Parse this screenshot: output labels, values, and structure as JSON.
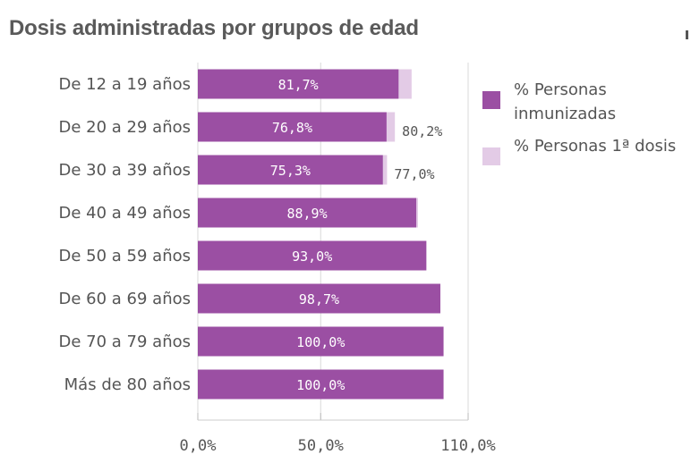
{
  "chart_data": {
    "type": "bar",
    "orientation": "horizontal",
    "title": "Dosis administradas por grupos de edad",
    "categories": [
      "De 12 a 19 años",
      "De 20 a 29 años",
      "De 30 a 39 años",
      "De 40 a 49 años",
      "De 50 a 59 años",
      "De 60 a 69 años",
      "De 70 a 79 años",
      "Más de 80 años"
    ],
    "series": [
      {
        "name": "% Personas inmunizadas",
        "color": "#9b4fa3",
        "values": [
          81.7,
          76.8,
          75.3,
          88.9,
          93.0,
          98.7,
          100.0,
          100.0
        ],
        "labels": [
          "81,7%",
          "76,8%",
          "75,3%",
          "88,9%",
          "93,0%",
          "98,7%",
          "100,0%",
          "100,0%"
        ]
      },
      {
        "name": "% Personas 1ª dosis",
        "color": "#e3cbe6",
        "values": [
          87.0,
          80.2,
          77.0,
          89.6,
          93.0,
          98.7,
          100.0,
          100.0
        ],
        "labels": [
          "",
          "80,2%",
          "77,0%",
          "",
          "",
          "",
          "",
          ""
        ]
      }
    ],
    "xlim": [
      0,
      110
    ],
    "xticks": [
      0,
      50,
      110
    ],
    "xtick_labels": [
      "0,0%",
      "50,0%",
      "110,0%"
    ],
    "legend": {
      "position": "right",
      "items": [
        {
          "lines": [
            "% Personas",
            "inmunizadas"
          ],
          "color": "#9b4fa3"
        },
        {
          "lines": [
            "% Personas 1ª dosis"
          ],
          "color": "#e3cbe6"
        }
      ]
    }
  }
}
